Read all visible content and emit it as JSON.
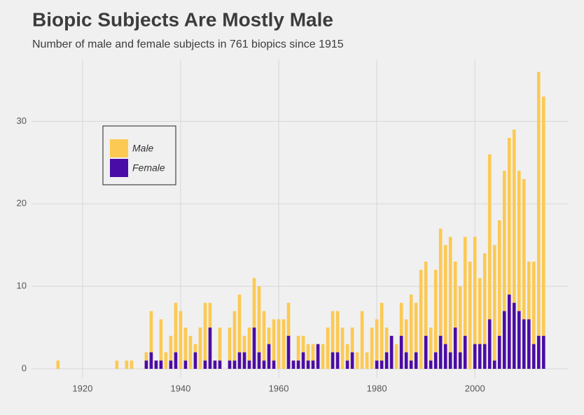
{
  "chart_data": {
    "type": "bar-overlap",
    "title": "Biopic Subjects Are Mostly Male",
    "subtitle": "Number of male and female subjects in 761 biopics since 1915",
    "x": [
      1915,
      1927,
      1929,
      1930,
      1933,
      1934,
      1935,
      1936,
      1937,
      1938,
      1939,
      1940,
      1941,
      1942,
      1943,
      1944,
      1945,
      1946,
      1947,
      1948,
      1950,
      1951,
      1952,
      1953,
      1954,
      1955,
      1956,
      1957,
      1958,
      1959,
      1960,
      1961,
      1962,
      1963,
      1964,
      1965,
      1966,
      1967,
      1968,
      1969,
      1970,
      1971,
      1972,
      1973,
      1974,
      1975,
      1976,
      1977,
      1978,
      1979,
      1980,
      1981,
      1982,
      1983,
      1984,
      1985,
      1986,
      1987,
      1988,
      1989,
      1990,
      1991,
      1992,
      1993,
      1994,
      1995,
      1996,
      1997,
      1998,
      1999,
      2000,
      2001,
      2002,
      2003,
      2004,
      2005,
      2006,
      2007,
      2008,
      2009,
      2010,
      2011,
      2012,
      2013,
      2014
    ],
    "series": [
      {
        "name": "Male",
        "color": "#fcc952",
        "values": [
          1,
          1,
          1,
          1,
          2,
          7,
          1,
          6,
          2,
          4,
          8,
          7,
          5,
          4,
          3,
          5,
          8,
          8,
          1,
          5,
          5,
          7,
          9,
          4,
          5,
          11,
          10,
          7,
          5,
          6,
          6,
          6,
          8,
          1,
          4,
          4,
          3,
          3,
          3,
          3,
          5,
          7,
          7,
          5,
          3,
          5,
          2,
          7,
          2,
          5,
          6,
          8,
          5,
          4,
          3,
          8,
          6,
          9,
          8,
          12,
          13,
          5,
          12,
          17,
          15,
          16,
          13,
          10,
          16,
          13,
          16,
          11,
          14,
          26,
          15,
          18,
          24,
          28,
          29,
          24,
          23,
          13,
          13,
          36,
          33
        ]
      },
      {
        "name": "Female",
        "color": "#4a0ca6",
        "values": [
          0,
          0,
          0,
          0,
          1,
          2,
          1,
          1,
          0,
          1,
          2,
          0,
          1,
          0,
          2,
          0,
          1,
          5,
          1,
          1,
          1,
          1,
          2,
          2,
          1,
          5,
          2,
          1,
          3,
          1,
          0,
          0,
          4,
          1,
          1,
          2,
          1,
          1,
          3,
          0,
          0,
          2,
          2,
          0,
          1,
          2,
          0,
          0,
          0,
          0,
          1,
          1,
          2,
          4,
          0,
          4,
          2,
          1,
          2,
          0,
          4,
          1,
          2,
          4,
          3,
          2,
          5,
          2,
          4,
          0,
          3,
          3,
          3,
          6,
          1,
          4,
          7,
          9,
          8,
          7,
          6,
          6,
          3,
          4,
          4
        ]
      }
    ],
    "xlim": [
      1909.6,
      2019.1
    ],
    "xticks": [
      1920,
      1940,
      1960,
      1980,
      2000
    ],
    "ylim": [
      -1.1,
      37.5
    ],
    "yticks": [
      0,
      10,
      20,
      30
    ],
    "grid": true,
    "legend": "top-left"
  }
}
